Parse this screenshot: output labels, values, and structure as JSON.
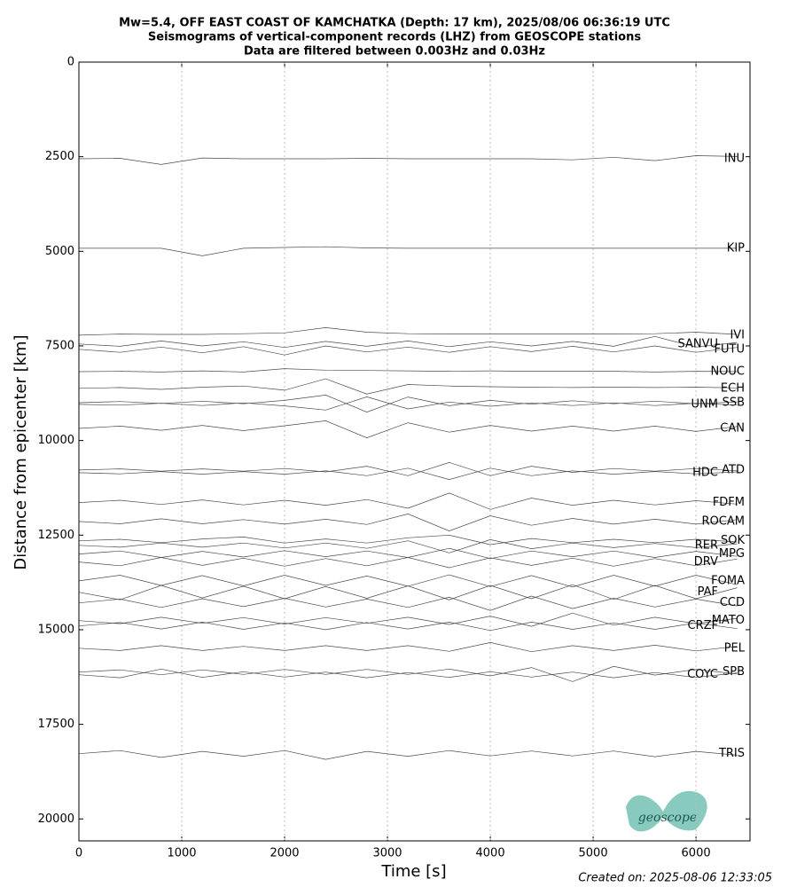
{
  "chart_data": {
    "type": "seismogram",
    "title": [
      "Mw=5.4, OFF EAST COAST OF KAMCHATKA (Depth: 17 km), 2025/08/06 06:36:19 UTC",
      "Seismograms of vertical-component records (LHZ) from GEOSCOPE stations",
      "Data are filtered between 0.003Hz and 0.03Hz"
    ],
    "x_label": "Time [s]",
    "y_label": "Distance from epicenter [km]",
    "footer": "Created on: 2025-08-06 12:33:05",
    "logo_text": "geoscope",
    "xlim": [
      0,
      6525
    ],
    "ylim": [
      0,
      20580
    ],
    "y_inverted": true,
    "xticks": [
      0,
      1000,
      2000,
      3000,
      4000,
      5000,
      6000
    ],
    "yticks": [
      0,
      2500,
      5000,
      7500,
      10000,
      12500,
      15000,
      17500,
      20000
    ],
    "grid_x": true,
    "line_color": "#4a4a4a",
    "x": [
      0,
      400,
      800,
      1200,
      1600,
      2000,
      2400,
      2800,
      3200,
      3600,
      4000,
      4400,
      4800,
      5200,
      5600,
      6000,
      6400
    ],
    "series": [
      {
        "name": "INU",
        "distance": 2554,
        "values": [
          0,
          10,
          -150,
          20,
          0,
          0,
          0,
          10,
          0,
          0,
          0,
          0,
          -30,
          40,
          -50,
          80,
          60
        ]
      },
      {
        "name": "KIP",
        "distance": 4920,
        "values": [
          0,
          0,
          0,
          -200,
          0,
          20,
          40,
          10,
          0,
          0,
          0,
          0,
          0,
          0,
          0,
          0,
          0
        ]
      },
      {
        "name": "IVI",
        "distance": 7217,
        "values": [
          0,
          30,
          20,
          20,
          40,
          60,
          200,
          80,
          40,
          30,
          30,
          30,
          30,
          30,
          40,
          80,
          20
        ]
      },
      {
        "name": "SANVU",
        "distance": 7450,
        "values": [
          0,
          -60,
          80,
          -50,
          60,
          -90,
          70,
          -60,
          80,
          -70,
          60,
          -50,
          70,
          -60,
          200,
          -80,
          40
        ]
      },
      {
        "name": "FUTU",
        "distance": 7590,
        "values": [
          0,
          -80,
          60,
          -90,
          70,
          -150,
          90,
          -70,
          60,
          -80,
          70,
          -60,
          80,
          -70,
          90,
          -80,
          50
        ]
      },
      {
        "name": "NOUC",
        "distance": 8180,
        "values": [
          0,
          10,
          -10,
          20,
          -10,
          80,
          40,
          30,
          20,
          10,
          20,
          10,
          10,
          10,
          -10,
          10,
          0
        ]
      },
      {
        "name": "ECH",
        "distance": 8620,
        "values": [
          0,
          20,
          -30,
          30,
          60,
          -50,
          250,
          -150,
          100,
          60,
          40,
          30,
          20,
          30,
          20,
          30,
          10
        ]
      },
      {
        "name": "SSB",
        "distance": 9000,
        "values": [
          0,
          30,
          -20,
          40,
          -30,
          60,
          200,
          -250,
          150,
          -80,
          60,
          -40,
          50,
          -30,
          40,
          -30,
          20
        ]
      },
      {
        "name": "UNM",
        "distance": 9045,
        "values": [
          0,
          -20,
          30,
          -30,
          40,
          -40,
          -150,
          200,
          -120,
          60,
          -50,
          40,
          -30,
          40,
          -30,
          30,
          -20
        ]
      },
      {
        "name": "CAN",
        "distance": 9680,
        "values": [
          0,
          60,
          -50,
          80,
          -60,
          70,
          200,
          -250,
          150,
          -100,
          80,
          -70,
          60,
          -70,
          60,
          -80,
          50
        ]
      },
      {
        "name": "ATD",
        "distance": 10780,
        "values": [
          0,
          30,
          -30,
          30,
          -30,
          40,
          -50,
          100,
          -150,
          200,
          -150,
          100,
          -60,
          40,
          -30,
          40,
          -20
        ]
      },
      {
        "name": "HDC",
        "distance": 10850,
        "values": [
          0,
          -30,
          30,
          -40,
          30,
          -40,
          50,
          -80,
          120,
          -180,
          120,
          -80,
          50,
          -40,
          30,
          -30,
          20
        ]
      },
      {
        "name": "FDFM",
        "distance": 11640,
        "values": [
          0,
          60,
          -50,
          70,
          -60,
          60,
          -70,
          80,
          -150,
          250,
          -180,
          120,
          -70,
          60,
          -60,
          50,
          -40
        ]
      },
      {
        "name": "ROCAM",
        "distance": 12140,
        "values": [
          0,
          -60,
          70,
          -60,
          50,
          -70,
          60,
          -80,
          200,
          -250,
          150,
          -100,
          80,
          -70,
          60,
          -70,
          50
        ]
      },
      {
        "name": "SOK",
        "distance": 12650,
        "values": [
          0,
          40,
          -50,
          50,
          100,
          -60,
          50,
          -60,
          80,
          150,
          -100,
          60,
          -50,
          40,
          -50,
          40,
          -30
        ]
      },
      {
        "name": "RER",
        "distance": 12770,
        "values": [
          0,
          -50,
          60,
          -50,
          60,
          -70,
          60,
          -80,
          120,
          -200,
          150,
          -90,
          60,
          -60,
          50,
          -60,
          40
        ]
      },
      {
        "name": "MPG",
        "distance": 13000,
        "values": [
          0,
          80,
          -90,
          70,
          -80,
          90,
          -70,
          80,
          -90,
          150,
          -120,
          80,
          -70,
          80,
          -90,
          70,
          -60
        ]
      },
      {
        "name": "DRV",
        "distance": 13210,
        "values": [
          0,
          -100,
          120,
          -90,
          100,
          -110,
          90,
          -100,
          120,
          -150,
          110,
          -90,
          100,
          -110,
          90,
          -100,
          80
        ]
      },
      {
        "name": "FOMA",
        "distance": 13710,
        "values": [
          0,
          150,
          -120,
          140,
          -130,
          150,
          -120,
          130,
          -140,
          160,
          -150,
          140,
          -160,
          150,
          -140,
          150,
          -100
        ]
      },
      {
        "name": "PAF",
        "distance": 14010,
        "values": [
          0,
          -200,
          180,
          -150,
          160,
          -170,
          150,
          -160,
          170,
          -200,
          180,
          -170,
          200,
          -190,
          180,
          -170,
          120
        ]
      },
      {
        "name": "CCD",
        "distance": 14290,
        "values": [
          0,
          100,
          -120,
          110,
          -100,
          120,
          -110,
          100,
          -120,
          150,
          -200,
          180,
          -150,
          120,
          -110,
          100,
          -80
        ]
      },
      {
        "name": "MATO",
        "distance": 14760,
        "values": [
          0,
          -80,
          90,
          -70,
          80,
          -90,
          80,
          -70,
          90,
          -100,
          120,
          -150,
          200,
          -120,
          90,
          -80,
          60
        ]
      },
      {
        "name": "CRZF",
        "distance": 14900,
        "values": [
          0,
          90,
          -80,
          100,
          -90,
          80,
          -100,
          90,
          -80,
          100,
          -120,
          100,
          -90,
          80,
          -90,
          80,
          -70
        ]
      },
      {
        "name": "PEL",
        "distance": 15490,
        "values": [
          0,
          -60,
          70,
          -60,
          50,
          -60,
          70,
          -60,
          70,
          -80,
          150,
          -90,
          70,
          -60,
          80,
          -70,
          50
        ]
      },
      {
        "name": "SPB",
        "distance": 16120,
        "values": [
          0,
          60,
          -70,
          60,
          -60,
          70,
          -60,
          70,
          -60,
          80,
          -100,
          120,
          -250,
          150,
          -80,
          70,
          -50
        ]
      },
      {
        "name": "COYC",
        "distance": 16190,
        "values": [
          0,
          -80,
          150,
          -70,
          80,
          -60,
          70,
          -80,
          60,
          -70,
          80,
          -60,
          70,
          -80,
          60,
          -70,
          50
        ]
      },
      {
        "name": "TRIS",
        "distance": 18275,
        "values": [
          0,
          80,
          -100,
          60,
          -70,
          80,
          -150,
          60,
          -70,
          80,
          -60,
          70,
          -60,
          70,
          -80,
          60,
          -40
        ]
      }
    ]
  }
}
